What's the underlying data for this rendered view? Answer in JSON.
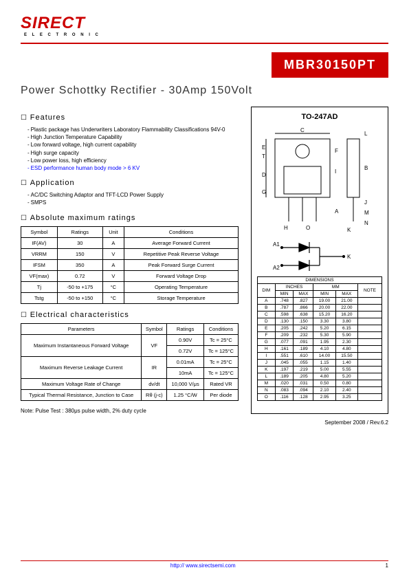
{
  "logo": {
    "main": "SIRECT",
    "sub": "E L E C T R O N I C"
  },
  "part_number": "MBR30150PT",
  "title": "Power Schottky Rectifier - 30Amp 150Volt",
  "features": {
    "heading": "Features",
    "items": [
      "Plastic package has Underwriters Laboratory Flammability Classifications 94V-0",
      "High Junction Temperature Capability",
      "Low forward voltage, high current capability",
      "High surge capacity",
      "Low power loss, high efficiency"
    ],
    "esd": "ESD performance human body mode > 6 KV"
  },
  "application": {
    "heading": "Application",
    "items": [
      "AC/DC Switching Adaptor and TFT-LCD Power Supply",
      "SMPS"
    ]
  },
  "abs_max": {
    "heading": "Absolute maximum ratings",
    "cols": [
      "Symbol",
      "Ratings",
      "Unit",
      "Conditions"
    ],
    "rows": [
      [
        "IF(AV)",
        "30",
        "A",
        "Average Forward Current"
      ],
      [
        "VRRM",
        "150",
        "V",
        "Repetitive Peak Reverse Voltage"
      ],
      [
        "IFSM",
        "350",
        "A",
        "Peak Forward Surge Current"
      ],
      [
        "VF(max)",
        "0.72",
        "V",
        "Forward Voltage Drop"
      ],
      [
        "Tj",
        "-50 to +175",
        "°C",
        "Operating Temperature"
      ],
      [
        "Tstg",
        "-50 to +150",
        "°C",
        "Storage Temperature"
      ]
    ]
  },
  "elec": {
    "heading": "Electrical characteristics",
    "cols": [
      "Parameters",
      "Symbol",
      "Ratings",
      "Conditions"
    ],
    "rows": [
      {
        "p": "Maximum Instantaneous Forward Voltage",
        "s": "VF",
        "r1": "0.90V",
        "c1": "Tc = 25°C",
        "r2": "0.72V",
        "c2": "Tc = 125°C"
      },
      {
        "p": "Maximum Reverse Leakage Current",
        "s": "IR",
        "r1": "0.01mA",
        "c1": "Tc = 25°C",
        "r2": "10mA",
        "c2": "Tc = 125°C"
      },
      {
        "p": "Maximum Voltage Rate of Change",
        "s": "dv/dt",
        "r1": "10,000 V/μs",
        "c1": "Rated VR"
      },
      {
        "p": "Typical Thermal Resistance, Junction to Case",
        "s": "Rθ (j-c)",
        "r1": "1.25 °C/W",
        "c1": "Per diode"
      }
    ]
  },
  "note": "Note: Pulse Test : 380μs pulse width, 2% duty cycle",
  "package": {
    "name": "TO-247AD",
    "sym_labels": {
      "a1": "A1",
      "a2": "A2",
      "k": "K"
    },
    "dim_heading": "DIMENSIONS",
    "dim_cols": {
      "dim": "DIM",
      "in": "INCHES",
      "mm": "MM",
      "note": "NOTE",
      "min": "MIN",
      "max": "MAX"
    },
    "dims": [
      [
        "A",
        ".748",
        ".827",
        "19.00",
        "21.00",
        ""
      ],
      [
        "B",
        ".787",
        ".866",
        "20.00",
        "22.00",
        ""
      ],
      [
        "C",
        ".598",
        ".638",
        "15.20",
        "16.20",
        ""
      ],
      [
        "D",
        ".130",
        ".150",
        "3.30",
        "3.80",
        ""
      ],
      [
        "E",
        ".205",
        ".242",
        "5.20",
        "6.15",
        ""
      ],
      [
        "F",
        ".209",
        ".232",
        "5.30",
        "5.90",
        ""
      ],
      [
        "G",
        ".077",
        ".091",
        "1.95",
        "2.30",
        ""
      ],
      [
        "H",
        ".161",
        ".189",
        "4.10",
        "4.80",
        ""
      ],
      [
        "I",
        ".551",
        ".610",
        "14.00",
        "15.50",
        ""
      ],
      [
        "J",
        ".045",
        ".055",
        "1.15",
        "1.40",
        ""
      ],
      [
        "K",
        ".197",
        ".219",
        "5.00",
        "5.55",
        ""
      ],
      [
        "L",
        ".189",
        ".205",
        "4.80",
        "5.20",
        ""
      ],
      [
        "M",
        ".020",
        ".031",
        "0.50",
        "0.80",
        ""
      ],
      [
        "N",
        ".083",
        ".094",
        "2.10",
        "2.40",
        ""
      ],
      [
        "O",
        ".116",
        ".128",
        "2.95",
        "3.25",
        ""
      ]
    ]
  },
  "revision": "September  2008  / Rev.6.2",
  "url": "http:// www.sirectsemi.com",
  "page": "1"
}
